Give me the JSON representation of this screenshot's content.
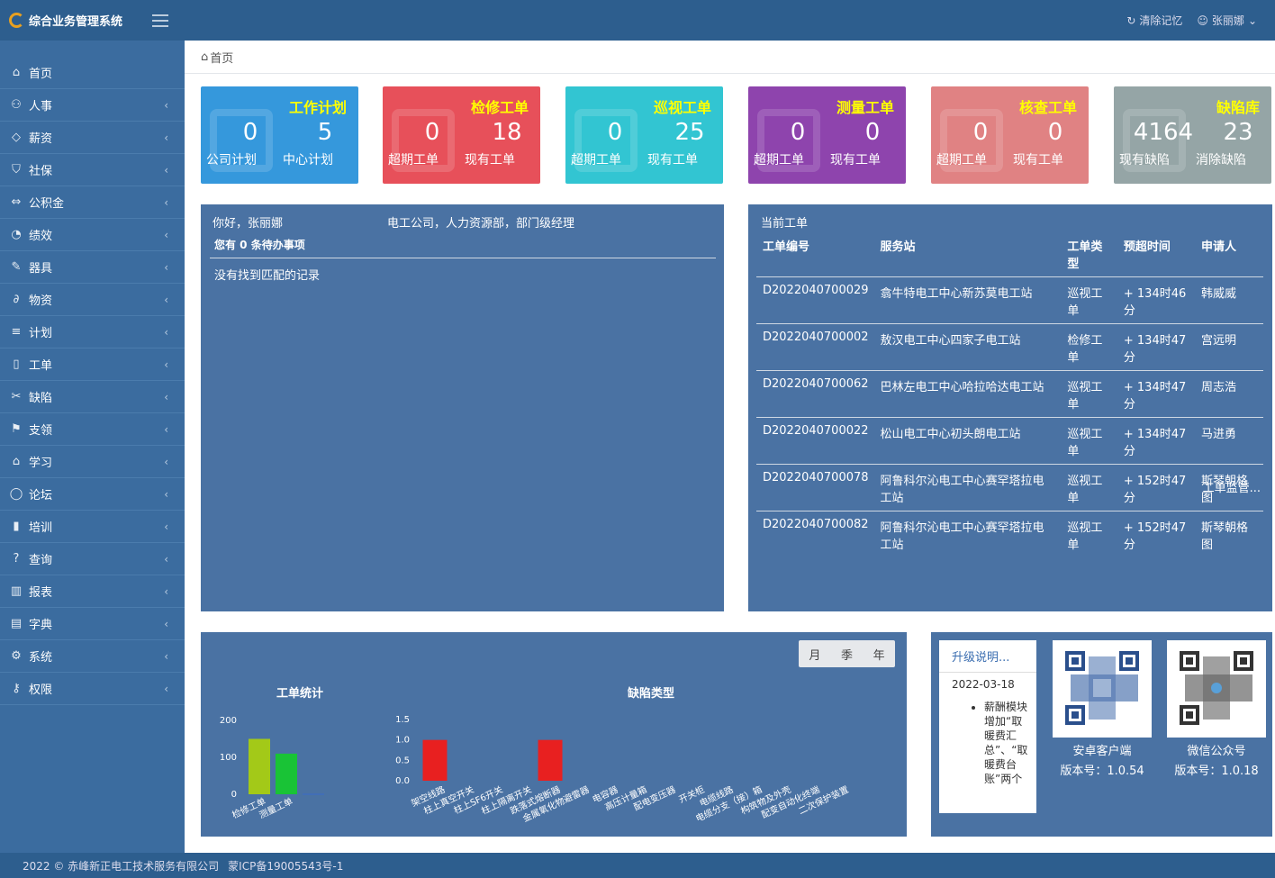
{
  "app": {
    "title": "综合业务管理系统",
    "clear_label": "清除记忆",
    "user": "张丽娜"
  },
  "sidebar": {
    "items": [
      {
        "label": "首页",
        "icon": "home-icon",
        "glyph": "⌂",
        "chev": false
      },
      {
        "label": "人事",
        "icon": "users-icon",
        "glyph": "⚇",
        "chev": true
      },
      {
        "label": "薪资",
        "icon": "diamond-icon",
        "glyph": "◇",
        "chev": true
      },
      {
        "label": "社保",
        "icon": "shield-icon",
        "glyph": "⛉",
        "chev": true
      },
      {
        "label": "公积金",
        "icon": "link-icon",
        "glyph": "⇔",
        "chev": true
      },
      {
        "label": "绩效",
        "icon": "gauge-icon",
        "glyph": "◔",
        "chev": true
      },
      {
        "label": "器具",
        "icon": "wrench-icon",
        "glyph": "✎",
        "chev": true
      },
      {
        "label": "物资",
        "icon": "paperclip-icon",
        "glyph": "∂",
        "chev": true
      },
      {
        "label": "计划",
        "icon": "list-icon",
        "glyph": "≡",
        "chev": true
      },
      {
        "label": "工单",
        "icon": "tablet-icon",
        "glyph": "▯",
        "chev": true
      },
      {
        "label": "缺陷",
        "icon": "tag-icon",
        "glyph": "✂",
        "chev": true
      },
      {
        "label": "支领",
        "icon": "flag-icon",
        "glyph": "⚑",
        "chev": true
      },
      {
        "label": "学习",
        "icon": "graduation-cap-icon",
        "glyph": "⌂",
        "chev": true
      },
      {
        "label": "论坛",
        "icon": "comment-icon",
        "glyph": "◯",
        "chev": true
      },
      {
        "label": "培训",
        "icon": "book-icon",
        "glyph": "▮",
        "chev": true
      },
      {
        "label": "查询",
        "icon": "question-icon",
        "glyph": "?",
        "chev": true
      },
      {
        "label": "报表",
        "icon": "bar-chart-icon",
        "glyph": "▥",
        "chev": true
      },
      {
        "label": "字典",
        "icon": "open-book-icon",
        "glyph": "▤",
        "chev": true
      },
      {
        "label": "系统",
        "icon": "gear-icon",
        "glyph": "⚙",
        "chev": true
      },
      {
        "label": "权限",
        "icon": "key-icon",
        "glyph": "⚷",
        "chev": true
      }
    ]
  },
  "breadcrumb": "首页",
  "cards": [
    {
      "title": "工作计划",
      "color": "#3598dc",
      "a": "0",
      "al": "公司计划",
      "b": "5",
      "bl": "中心计划"
    },
    {
      "title": "检修工单",
      "color": "#e7505a",
      "a": "0",
      "al": "超期工单",
      "b": "18",
      "bl": "现有工单"
    },
    {
      "title": "巡视工单",
      "color": "#32c5d2",
      "a": "0",
      "al": "超期工单",
      "b": "25",
      "bl": "现有工单"
    },
    {
      "title": "测量工单",
      "color": "#8e44ad",
      "a": "0",
      "al": "超期工单",
      "b": "0",
      "bl": "现有工单"
    },
    {
      "title": "核查工单",
      "color": "#e08283",
      "a": "0",
      "al": "超期工单",
      "b": "0",
      "bl": "现有工单"
    },
    {
      "title": "缺陷库",
      "color": "#95a5a6",
      "a": "4164",
      "al": "现有缺陷",
      "b": "23",
      "bl": "消除缺陷"
    }
  ],
  "todo": {
    "greeting": "你好，张丽娜",
    "dept": "电工公司，人力资源部，部门级经理",
    "count_label": "您有 0 条待办事项",
    "empty": "没有找到匹配的记录"
  },
  "workorders": {
    "title": "当前工单",
    "headers": [
      "工单编号",
      "服务站",
      "工单类型",
      "预超时间",
      "申请人"
    ],
    "rows": [
      [
        "D2022040700029",
        "翕牛特电工中心新苏莫电工站",
        "巡视工单",
        "+ 134时46分",
        "韩威威"
      ],
      [
        "D2022040700002",
        "敖汉电工中心四家子电工站",
        "检修工单",
        "+ 134时47分",
        "宫远明"
      ],
      [
        "D2022040700062",
        "巴林左电工中心哈拉哈达电工站",
        "巡视工单",
        "+ 134时47分",
        "周志浩"
      ],
      [
        "D2022040700022",
        "松山电工中心初头朗电工站",
        "巡视工单",
        "+ 134时47分",
        "马进勇"
      ],
      [
        "D2022040700078",
        "阿鲁科尔沁电工中心赛罕塔拉电工站",
        "巡视工单",
        "+ 152时47分",
        "斯琴朝格图"
      ],
      [
        "D2022040700082",
        "阿鲁科尔沁电工中心赛罕塔拉电工站",
        "巡视工单",
        "+ 152时47分",
        "斯琴朝格图"
      ]
    ],
    "more": "工单监管..."
  },
  "period_tabs": [
    "月",
    "季",
    "年"
  ],
  "chart_data": [
    {
      "type": "bar",
      "title": "工单统计",
      "categories": [
        "检修工单",
        "测量工单",
        ""
      ],
      "values": [
        150,
        110,
        0
      ],
      "colors": [
        "#a3c918",
        "#19c336",
        "#3a6ac8"
      ],
      "ylim": [
        0,
        200
      ],
      "yticks": [
        "0",
        "100",
        "200"
      ]
    },
    {
      "type": "bar",
      "title": "缺陷类型",
      "categories": [
        "架空线路",
        "柱上真空开关",
        "柱上SF6开关",
        "柱上隔离开关",
        "跌落式熔断器",
        "金属氧化物避雷器",
        "电容器",
        "高压计量箱",
        "配电变压器",
        "开关柜",
        "电缆线路",
        "电缆分支（接）箱",
        "构筑物及外壳",
        "配变自动化终端",
        "二次保护装置"
      ],
      "values": [
        1,
        0,
        0,
        0,
        1,
        0,
        0,
        0,
        0,
        0,
        0,
        0,
        0,
        0,
        0
      ],
      "colors": [
        "#e82020",
        "#e0c020"
      ],
      "ylim": [
        0,
        1.5
      ],
      "yticks": [
        "0.0",
        "0.5",
        "1.0",
        "1.5"
      ]
    }
  ],
  "upgrade": {
    "title": "升级说明...",
    "date": "2022-03-18",
    "item": "薪酬模块增加“取暖费汇总”、“取暖费台账”两个"
  },
  "apps": [
    {
      "name": "安卓客户端",
      "version": "版本号：1.0.54"
    },
    {
      "name": "微信公众号",
      "version": "版本号：1.0.18"
    }
  ],
  "footer": {
    "copyright": "2022 © 赤峰新正电工技术服务有限公司",
    "icp": "蒙ICP备19005543号-1"
  }
}
